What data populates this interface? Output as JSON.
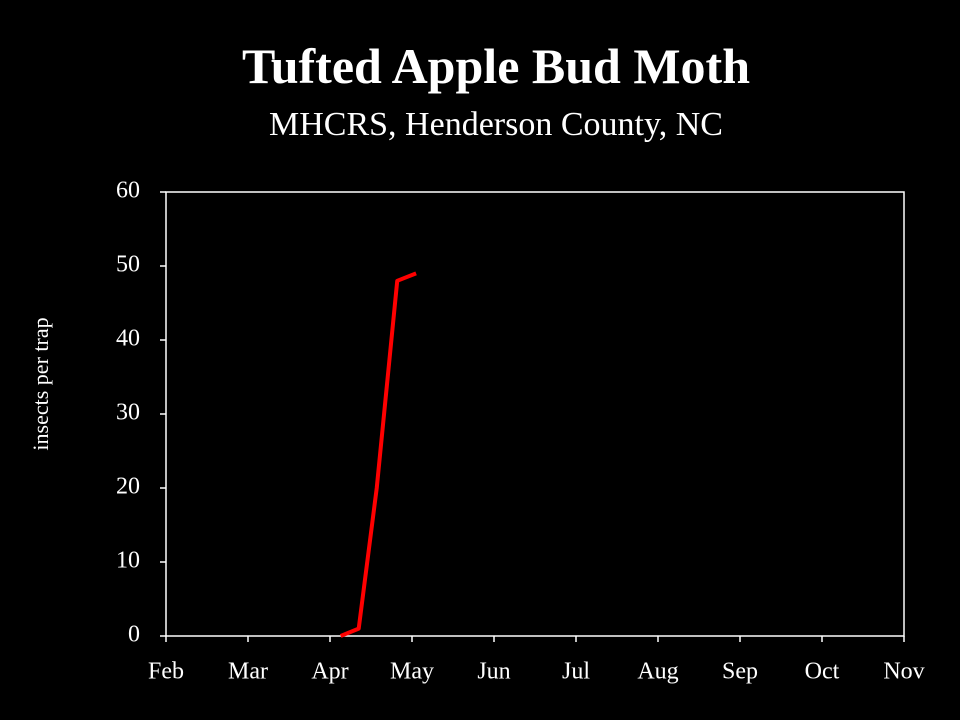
{
  "chart_data": {
    "type": "line",
    "title": "Tufted Apple Bud Moth",
    "subtitle": "MHCRS, Henderson County, NC",
    "y_label": "insects per trap",
    "x": [
      4.13,
      4.35,
      4.57,
      4.82,
      5.05
    ],
    "series": [
      {
        "name": "Tufted Apple Bud Moth",
        "color": "#ff0000",
        "values": [
          0,
          1,
          20,
          48,
          49
        ]
      }
    ],
    "xlim": [
      2,
      11
    ],
    "xticks": [
      {
        "value": 2,
        "label": "Feb"
      },
      {
        "value": 3,
        "label": "Mar"
      },
      {
        "value": 4,
        "label": "Apr"
      },
      {
        "value": 5,
        "label": "May"
      },
      {
        "value": 6,
        "label": "Jun"
      },
      {
        "value": 7,
        "label": "Jul"
      },
      {
        "value": 8,
        "label": "Aug"
      },
      {
        "value": 9,
        "label": "Sep"
      },
      {
        "value": 10,
        "label": "Oct"
      },
      {
        "value": 11,
        "label": "Nov"
      }
    ],
    "ylim": [
      0,
      60
    ],
    "yticks": [
      0,
      10,
      20,
      30,
      40,
      50,
      60
    ]
  }
}
